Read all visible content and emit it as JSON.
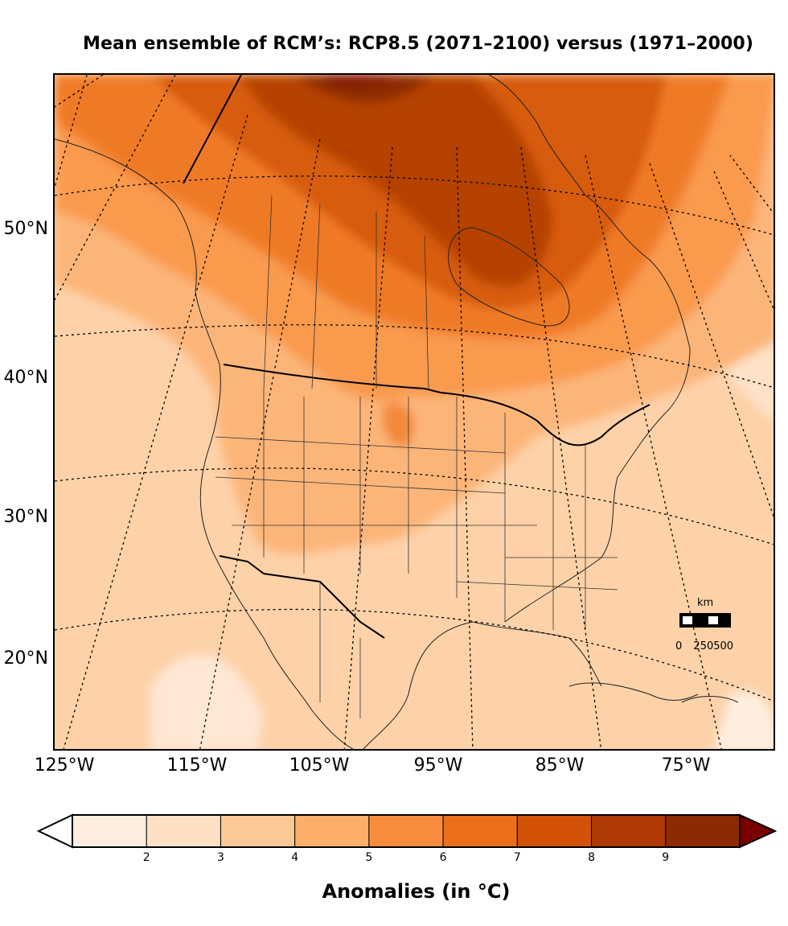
{
  "title": "Mean ensemble of RCM’s: RCP8.5 (2071–2100) versus (1971–2000)",
  "map": {
    "lat_labels": [
      "50°N",
      "40°N",
      "30°N",
      "20°N"
    ],
    "lon_labels": [
      "125°W",
      "115°W",
      "105°W",
      "95°W",
      "85°W",
      "75°W"
    ]
  },
  "scale_bar": {
    "unit": "km",
    "ticks": [
      "0",
      "250",
      "500"
    ]
  },
  "colorbar": {
    "title": "Anomalies (in °C)",
    "tick_labels": [
      "2",
      "3",
      "4",
      "5",
      "6",
      "7",
      "8",
      "9"
    ],
    "colors": [
      "#ffffff",
      "#feeee0",
      "#fee0c4",
      "#fdc897",
      "#fdae6b",
      "#f78d3c",
      "#ec6f1b",
      "#d45208",
      "#ae3904",
      "#8c2a04",
      "#7a0000"
    ]
  }
}
